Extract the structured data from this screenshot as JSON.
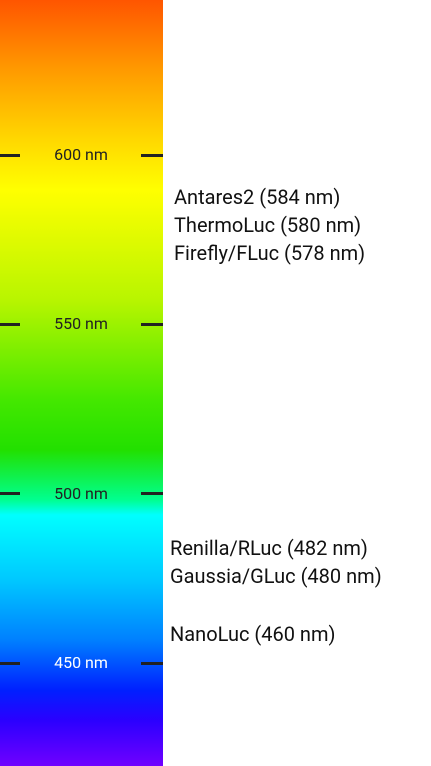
{
  "scale": {
    "ticks": [
      {
        "value": 600,
        "label": "600 nm"
      },
      {
        "value": 550,
        "label": "550 nm"
      },
      {
        "value": 500,
        "label": "500 nm"
      },
      {
        "value": 450,
        "label": "450 nm"
      }
    ]
  },
  "groups": [
    {
      "labels": [
        "Antares2 (584 nm)",
        "ThermoLuc (580 nm)",
        "Firefly/FLuc (578 nm)"
      ]
    },
    {
      "labels": [
        "Renilla/RLuc (482 nm)",
        "Gaussia/GLuc (480 nm)"
      ]
    },
    {
      "labels": [
        "NanoLuc (460 nm)"
      ]
    }
  ]
}
